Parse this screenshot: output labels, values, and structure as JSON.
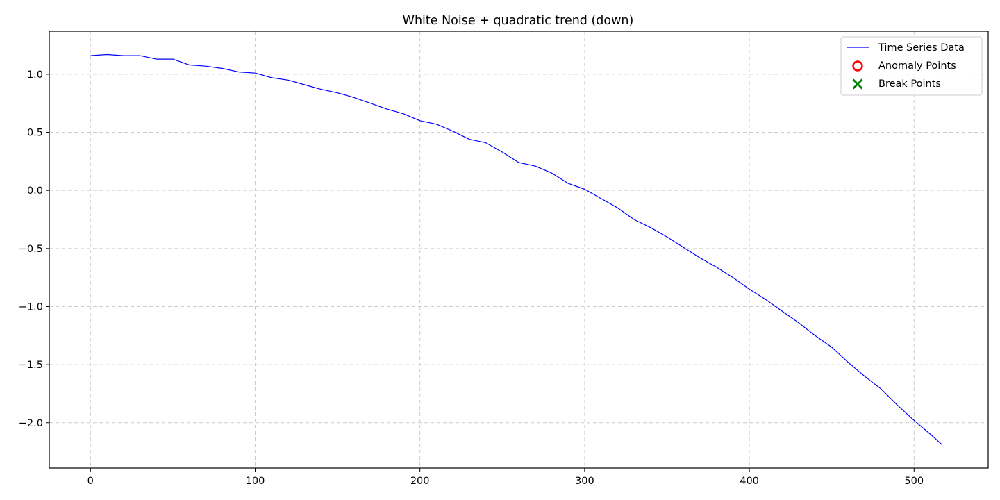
{
  "chart_data": {
    "type": "line",
    "title": "White Noise + quadratic trend (down)",
    "xlabel": "",
    "ylabel": "",
    "xlim": [
      -25,
      545
    ],
    "ylim": [
      -2.39,
      1.37
    ],
    "xticks": [
      0,
      100,
      200,
      300,
      400,
      500
    ],
    "yticks": [
      -2.0,
      -1.5,
      -1.0,
      -0.5,
      0.0,
      0.5,
      1.0
    ],
    "xtick_labels": [
      "0",
      "100",
      "200",
      "300",
      "400",
      "500"
    ],
    "ytick_labels": [
      "−2.0",
      "−1.5",
      "−1.0",
      "−0.5",
      "0.0",
      "0.5",
      "1.0"
    ],
    "grid": true,
    "legend": {
      "placement": "top-right",
      "entries": [
        {
          "label": "Time Series Data",
          "marker": "line",
          "color": "#0000ff"
        },
        {
          "label": "Anomaly Points",
          "marker": "circle",
          "color": "#ff0000"
        },
        {
          "label": "Break Points",
          "marker": "x",
          "color": "#008000"
        }
      ]
    },
    "series": [
      {
        "name": "Time Series Data",
        "color": "#0000ff",
        "x": [
          0,
          10,
          20,
          30,
          40,
          50,
          60,
          70,
          80,
          90,
          100,
          110,
          120,
          130,
          140,
          150,
          160,
          170,
          180,
          190,
          200,
          210,
          220,
          230,
          240,
          250,
          260,
          270,
          280,
          290,
          300,
          310,
          320,
          330,
          340,
          350,
          360,
          370,
          380,
          390,
          400,
          410,
          420,
          430,
          440,
          450,
          460,
          470,
          480,
          490,
          500,
          510,
          517
        ],
        "y": [
          1.16,
          1.17,
          1.16,
          1.16,
          1.13,
          1.13,
          1.08,
          1.07,
          1.05,
          1.02,
          1.01,
          0.97,
          0.95,
          0.91,
          0.87,
          0.84,
          0.8,
          0.75,
          0.7,
          0.66,
          0.6,
          0.57,
          0.51,
          0.44,
          0.41,
          0.33,
          0.24,
          0.21,
          0.15,
          0.06,
          0.01,
          -0.07,
          -0.15,
          -0.25,
          -0.32,
          -0.4,
          -0.49,
          -0.58,
          -0.66,
          -0.75,
          -0.85,
          -0.94,
          -1.04,
          -1.14,
          -1.25,
          -1.35,
          -1.48,
          -1.6,
          -1.71,
          -1.85,
          -1.98,
          -2.1,
          -2.19
        ]
      },
      {
        "name": "Anomaly Points",
        "color": "#ff0000",
        "x": [],
        "y": []
      },
      {
        "name": "Break Points",
        "color": "#008000",
        "x": [],
        "y": []
      }
    ]
  }
}
